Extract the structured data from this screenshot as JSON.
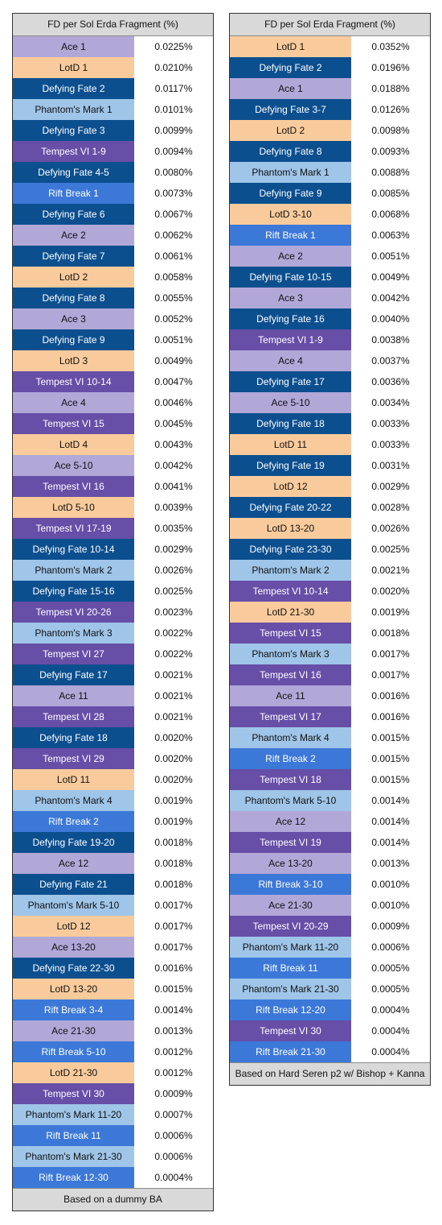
{
  "colors": {
    "Ace": "#b1a8d8",
    "LotD": "#f9cb9c",
    "Defying Fate": "#0c4f8f",
    "Phantom's Mark": "#9fc5e8",
    "Tempest VI": "#674ea7",
    "Rift Break": "#3c78d8",
    "header_footer": "#d9d9d9"
  },
  "tables": [
    {
      "header": "FD per Sol Erda Fragment (%)",
      "footer": "Based on a dummy BA",
      "rows": [
        {
          "name": "Ace 1",
          "value": "0.0225%",
          "skill": "ace"
        },
        {
          "name": "LotD 1",
          "value": "0.0210%",
          "skill": "lotd"
        },
        {
          "name": "Defying Fate 2",
          "value": "0.0117%",
          "skill": "df"
        },
        {
          "name": "Phantom's Mark 1",
          "value": "0.0101%",
          "skill": "pm"
        },
        {
          "name": "Defying Fate 3",
          "value": "0.0099%",
          "skill": "df"
        },
        {
          "name": "Tempest VI 1-9",
          "value": "0.0094%",
          "skill": "tv"
        },
        {
          "name": "Defying Fate 4-5",
          "value": "0.0080%",
          "skill": "df"
        },
        {
          "name": "Rift Break 1",
          "value": "0.0073%",
          "skill": "rb"
        },
        {
          "name": "Defying Fate 6",
          "value": "0.0067%",
          "skill": "df"
        },
        {
          "name": "Ace 2",
          "value": "0.0062%",
          "skill": "ace"
        },
        {
          "name": "Defying Fate 7",
          "value": "0.0061%",
          "skill": "df"
        },
        {
          "name": "LotD 2",
          "value": "0.0058%",
          "skill": "lotd"
        },
        {
          "name": "Defying Fate 8",
          "value": "0.0055%",
          "skill": "df"
        },
        {
          "name": "Ace 3",
          "value": "0.0052%",
          "skill": "ace"
        },
        {
          "name": "Defying Fate 9",
          "value": "0.0051%",
          "skill": "df"
        },
        {
          "name": "LotD 3",
          "value": "0.0049%",
          "skill": "lotd"
        },
        {
          "name": "Tempest VI 10-14",
          "value": "0.0047%",
          "skill": "tv"
        },
        {
          "name": "Ace 4",
          "value": "0.0046%",
          "skill": "ace"
        },
        {
          "name": "Tempest VI 15",
          "value": "0.0045%",
          "skill": "tv"
        },
        {
          "name": "LotD 4",
          "value": "0.0043%",
          "skill": "lotd"
        },
        {
          "name": "Ace 5-10",
          "value": "0.0042%",
          "skill": "ace"
        },
        {
          "name": "Tempest VI 16",
          "value": "0.0041%",
          "skill": "tv"
        },
        {
          "name": "LotD 5-10",
          "value": "0.0039%",
          "skill": "lotd"
        },
        {
          "name": "Tempest VI 17-19",
          "value": "0.0035%",
          "skill": "tv"
        },
        {
          "name": "Defying Fate 10-14",
          "value": "0.0029%",
          "skill": "df"
        },
        {
          "name": "Phantom's Mark 2",
          "value": "0.0026%",
          "skill": "pm"
        },
        {
          "name": "Defying Fate 15-16",
          "value": "0.0025%",
          "skill": "df"
        },
        {
          "name": "Tempest VI 20-26",
          "value": "0.0023%",
          "skill": "tv"
        },
        {
          "name": "Phantom's Mark 3",
          "value": "0.0022%",
          "skill": "pm"
        },
        {
          "name": "Tempest VI 27",
          "value": "0.0022%",
          "skill": "tv"
        },
        {
          "name": "Defying Fate 17",
          "value": "0.0021%",
          "skill": "df"
        },
        {
          "name": "Ace 11",
          "value": "0.0021%",
          "skill": "ace"
        },
        {
          "name": "Tempest VI 28",
          "value": "0.0021%",
          "skill": "tv"
        },
        {
          "name": "Defying Fate 18",
          "value": "0.0020%",
          "skill": "df"
        },
        {
          "name": "Tempest VI 29",
          "value": "0.0020%",
          "skill": "tv"
        },
        {
          "name": "LotD 11",
          "value": "0.0020%",
          "skill": "lotd"
        },
        {
          "name": "Phantom's Mark 4",
          "value": "0.0019%",
          "skill": "pm"
        },
        {
          "name": "Rift Break 2",
          "value": "0.0019%",
          "skill": "rb"
        },
        {
          "name": "Defying Fate 19-20",
          "value": "0.0018%",
          "skill": "df"
        },
        {
          "name": "Ace 12",
          "value": "0.0018%",
          "skill": "ace"
        },
        {
          "name": "Defying Fate 21",
          "value": "0.0018%",
          "skill": "df"
        },
        {
          "name": "Phantom's Mark 5-10",
          "value": "0.0017%",
          "skill": "pm"
        },
        {
          "name": "LotD 12",
          "value": "0.0017%",
          "skill": "lotd"
        },
        {
          "name": "Ace 13-20",
          "value": "0.0017%",
          "skill": "ace"
        },
        {
          "name": "Defying Fate 22-30",
          "value": "0.0016%",
          "skill": "df"
        },
        {
          "name": "LotD 13-20",
          "value": "0.0015%",
          "skill": "lotd"
        },
        {
          "name": "Rift Break 3-4",
          "value": "0.0014%",
          "skill": "rb"
        },
        {
          "name": "Ace 21-30",
          "value": "0.0013%",
          "skill": "ace"
        },
        {
          "name": "Rift Break 5-10",
          "value": "0.0012%",
          "skill": "rb"
        },
        {
          "name": "LotD 21-30",
          "value": "0.0012%",
          "skill": "lotd"
        },
        {
          "name": "Tempest VI 30",
          "value": "0.0009%",
          "skill": "tv"
        },
        {
          "name": "Phantom's Mark 11-20",
          "value": "0.0007%",
          "skill": "pm"
        },
        {
          "name": "Rift Break 11",
          "value": "0.0006%",
          "skill": "rb"
        },
        {
          "name": "Phantom's Mark 21-30",
          "value": "0.0006%",
          "skill": "pm"
        },
        {
          "name": "Rift Break 12-30",
          "value": "0.0004%",
          "skill": "rb"
        }
      ]
    },
    {
      "header": "FD per Sol Erda Fragment (%)",
      "footer": "Based on Hard Seren p2 w/ Bishop + Kanna",
      "rows": [
        {
          "name": "LotD 1",
          "value": "0.0352%",
          "skill": "lotd"
        },
        {
          "name": "Defying Fate 2",
          "value": "0.0196%",
          "skill": "df"
        },
        {
          "name": "Ace 1",
          "value": "0.0188%",
          "skill": "ace"
        },
        {
          "name": "Defying Fate 3-7",
          "value": "0.0126%",
          "skill": "df"
        },
        {
          "name": "LotD 2",
          "value": "0.0098%",
          "skill": "lotd"
        },
        {
          "name": "Defying Fate 8",
          "value": "0.0093%",
          "skill": "df"
        },
        {
          "name": "Phantom's Mark 1",
          "value": "0.0088%",
          "skill": "pm"
        },
        {
          "name": "Defying Fate 9",
          "value": "0.0085%",
          "skill": "df"
        },
        {
          "name": "LotD 3-10",
          "value": "0.0068%",
          "skill": "lotd"
        },
        {
          "name": "Rift Break 1",
          "value": "0.0063%",
          "skill": "rb"
        },
        {
          "name": "Ace 2",
          "value": "0.0051%",
          "skill": "ace"
        },
        {
          "name": "Defying Fate 10-15",
          "value": "0.0049%",
          "skill": "df"
        },
        {
          "name": "Ace 3",
          "value": "0.0042%",
          "skill": "ace"
        },
        {
          "name": "Defying Fate 16",
          "value": "0.0040%",
          "skill": "df"
        },
        {
          "name": "Tempest VI 1-9",
          "value": "0.0038%",
          "skill": "tv"
        },
        {
          "name": "Ace 4",
          "value": "0.0037%",
          "skill": "ace"
        },
        {
          "name": "Defying Fate 17",
          "value": "0.0036%",
          "skill": "df"
        },
        {
          "name": "Ace 5-10",
          "value": "0.0034%",
          "skill": "ace"
        },
        {
          "name": "Defying Fate 18",
          "value": "0.0033%",
          "skill": "df"
        },
        {
          "name": "LotD 11",
          "value": "0.0033%",
          "skill": "lotd"
        },
        {
          "name": "Defying Fate 19",
          "value": "0.0031%",
          "skill": "df"
        },
        {
          "name": "LotD 12",
          "value": "0.0029%",
          "skill": "lotd"
        },
        {
          "name": "Defying Fate 20-22",
          "value": "0.0028%",
          "skill": "df"
        },
        {
          "name": "LotD 13-20",
          "value": "0.0026%",
          "skill": "lotd"
        },
        {
          "name": "Defying Fate 23-30",
          "value": "0.0025%",
          "skill": "df"
        },
        {
          "name": "Phantom's Mark 2",
          "value": "0.0021%",
          "skill": "pm"
        },
        {
          "name": "Tempest VI 10-14",
          "value": "0.0020%",
          "skill": "tv"
        },
        {
          "name": "LotD 21-30",
          "value": "0.0019%",
          "skill": "lotd"
        },
        {
          "name": "Tempest VI 15",
          "value": "0.0018%",
          "skill": "tv"
        },
        {
          "name": "Phantom's Mark 3",
          "value": "0.0017%",
          "skill": "pm"
        },
        {
          "name": "Tempest VI 16",
          "value": "0.0017%",
          "skill": "tv"
        },
        {
          "name": "Ace 11",
          "value": "0.0016%",
          "skill": "ace"
        },
        {
          "name": "Tempest VI 17",
          "value": "0.0016%",
          "skill": "tv"
        },
        {
          "name": "Phantom's Mark 4",
          "value": "0.0015%",
          "skill": "pm"
        },
        {
          "name": "Rift Break 2",
          "value": "0.0015%",
          "skill": "rb"
        },
        {
          "name": "Tempest VI 18",
          "value": "0.0015%",
          "skill": "tv"
        },
        {
          "name": "Phantom's Mark 5-10",
          "value": "0.0014%",
          "skill": "pm"
        },
        {
          "name": "Ace 12",
          "value": "0.0014%",
          "skill": "ace"
        },
        {
          "name": "Tempest VI 19",
          "value": "0.0014%",
          "skill": "tv"
        },
        {
          "name": "Ace 13-20",
          "value": "0.0013%",
          "skill": "ace"
        },
        {
          "name": "Rift Break 3-10",
          "value": "0.0010%",
          "skill": "rb"
        },
        {
          "name": "Ace 21-30",
          "value": "0.0010%",
          "skill": "ace"
        },
        {
          "name": "Tempest VI 20-29",
          "value": "0.0009%",
          "skill": "tv"
        },
        {
          "name": "Phantom's Mark 11-20",
          "value": "0.0006%",
          "skill": "pm"
        },
        {
          "name": "Rift Break 11",
          "value": "0.0005%",
          "skill": "rb"
        },
        {
          "name": "Phantom's Mark 21-30",
          "value": "0.0005%",
          "skill": "pm"
        },
        {
          "name": "Rift Break 12-20",
          "value": "0.0004%",
          "skill": "rb"
        },
        {
          "name": "Tempest VI 30",
          "value": "0.0004%",
          "skill": "tv"
        },
        {
          "name": "Rift Break 21-30",
          "value": "0.0004%",
          "skill": "rb"
        }
      ]
    }
  ]
}
